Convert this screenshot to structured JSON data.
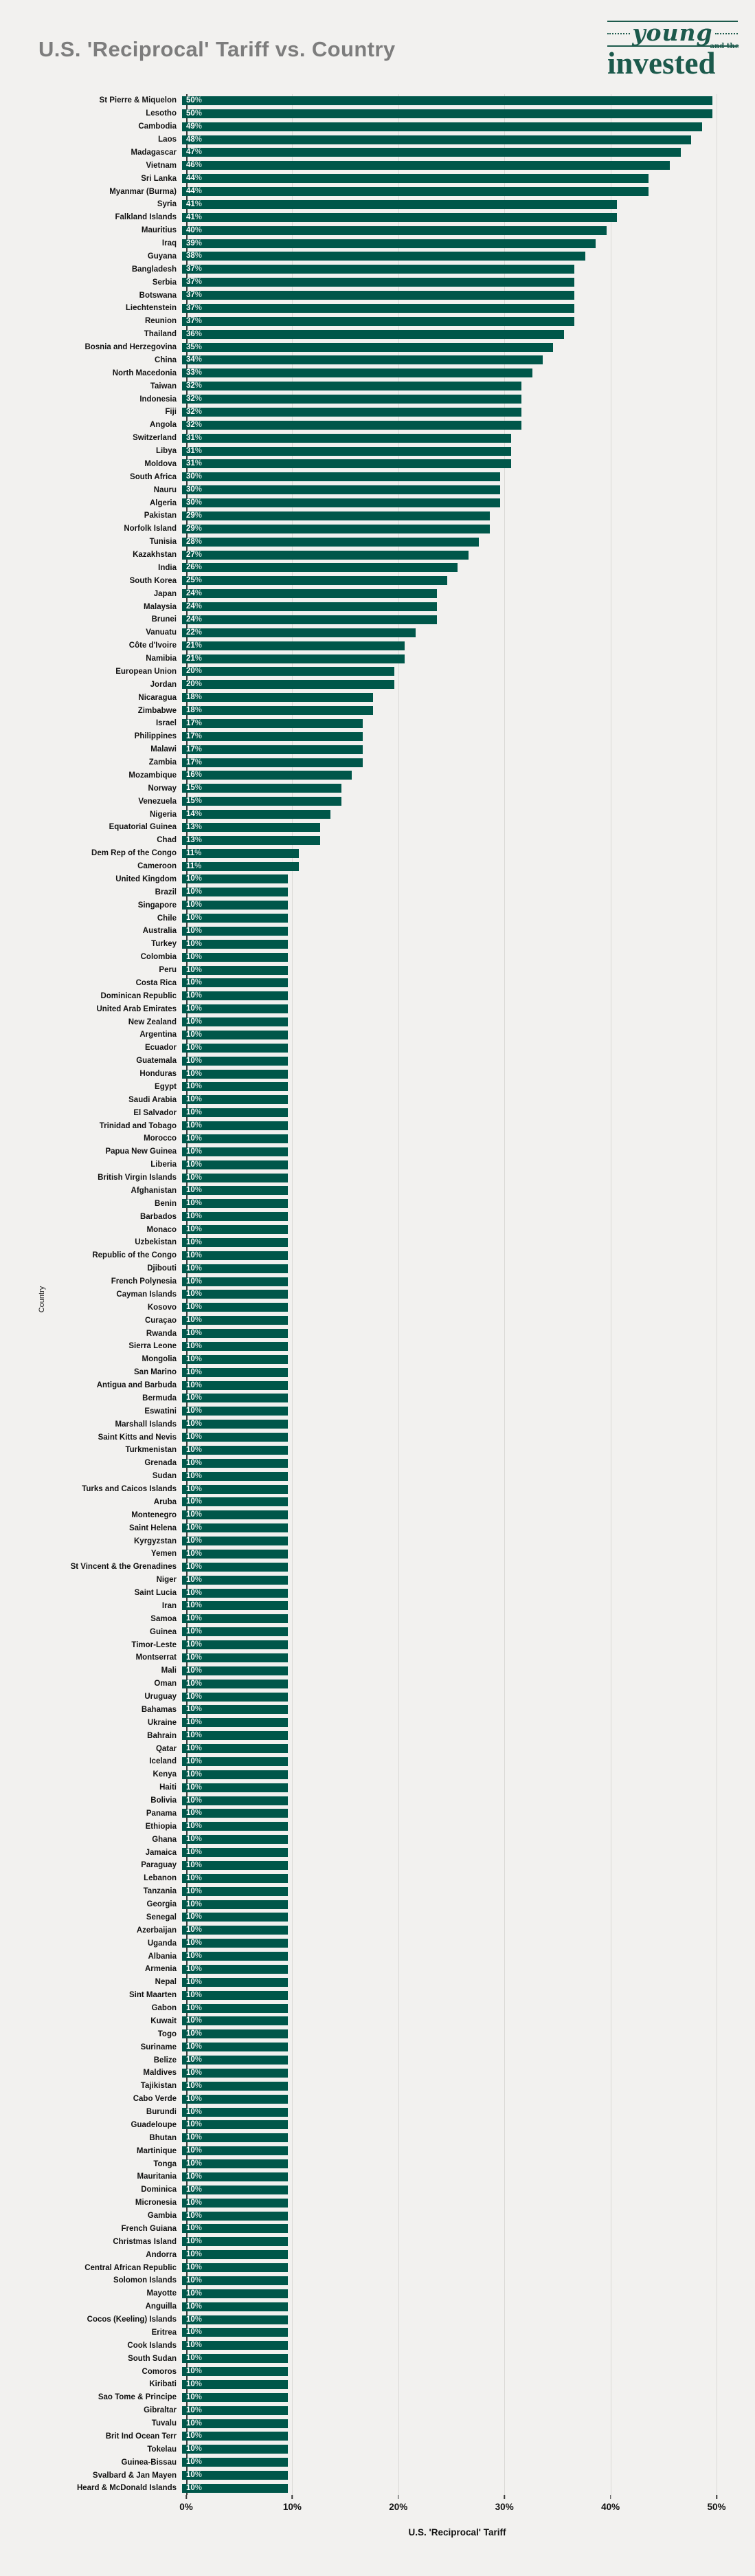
{
  "header": {
    "title": "U.S. 'Reciprocal' Tariff vs. Country"
  },
  "logo": {
    "young": "young",
    "and_the": "and the",
    "invested": "invested",
    "color": "#1c5a4c"
  },
  "axes": {
    "xlabel": "U.S. 'Reciprocal' Tariff",
    "ylabel": "Country"
  },
  "chart_data": {
    "type": "bar",
    "orientation": "horizontal",
    "title": "U.S. 'Reciprocal' Tariff vs. Country",
    "xlabel": "U.S. 'Reciprocal' Tariff",
    "ylabel": "Country",
    "xlim": [
      0,
      51.1
    ],
    "x_ticks": [
      "0%",
      "10%",
      "20%",
      "30%",
      "40%",
      "50%"
    ],
    "x_tick_values": [
      0,
      10,
      20,
      30,
      40,
      50
    ],
    "grid": true,
    "bar_color": "#00574a",
    "background_color": "#f2f1ef",
    "value_label_format": "{value}%",
    "categories": [
      "St Pierre & Miquelon",
      "Lesotho",
      "Cambodia",
      "Laos",
      "Madagascar",
      "Vietnam",
      "Sri Lanka",
      "Myanmar (Burma)",
      "Syria",
      "Falkland Islands",
      "Mauritius",
      "Iraq",
      "Guyana",
      "Bangladesh",
      "Serbia",
      "Botswana",
      "Liechtenstein",
      "Reunion",
      "Thailand",
      "Bosnia and Herzegovina",
      "China",
      "North Macedonia",
      "Taiwan",
      "Indonesia",
      "Fiji",
      "Angola",
      "Switzerland",
      "Libya",
      "Moldova",
      "South Africa",
      "Nauru",
      "Algeria",
      "Pakistan",
      "Norfolk Island",
      "Tunisia",
      "Kazakhstan",
      "India",
      "South Korea",
      "Japan",
      "Malaysia",
      "Brunei",
      "Vanuatu",
      "Côte d'Ivoire",
      "Namibia",
      "European Union",
      "Jordan",
      "Nicaragua",
      "Zimbabwe",
      "Israel",
      "Philippines",
      "Malawi",
      "Zambia",
      "Mozambique",
      "Norway",
      "Venezuela",
      "Nigeria",
      "Equatorial Guinea",
      "Chad",
      "Dem Rep of the Congo",
      "Cameroon",
      "United Kingdom",
      "Brazil",
      "Singapore",
      "Chile",
      "Australia",
      "Turkey",
      "Colombia",
      "Peru",
      "Costa Rica",
      "Dominican Republic",
      "United Arab Emirates",
      "New Zealand",
      "Argentina",
      "Ecuador",
      "Guatemala",
      "Honduras",
      "Egypt",
      "Saudi Arabia",
      "El Salvador",
      "Trinidad and Tobago",
      "Morocco",
      "Papua New Guinea",
      "Liberia",
      "British Virgin Islands",
      "Afghanistan",
      "Benin",
      "Barbados",
      "Monaco",
      "Uzbekistan",
      "Republic of the Congo",
      "Djibouti",
      "French Polynesia",
      "Cayman Islands",
      "Kosovo",
      "Curaçao",
      "Rwanda",
      "Sierra Leone",
      "Mongolia",
      "San Marino",
      "Antigua and Barbuda",
      "Bermuda",
      "Eswatini",
      "Marshall Islands",
      "Saint Kitts and Nevis",
      "Turkmenistan",
      "Grenada",
      "Sudan",
      "Turks and Caicos Islands",
      "Aruba",
      "Montenegro",
      "Saint Helena",
      "Kyrgyzstan",
      "Yemen",
      "St Vincent & the Grenadines",
      "Niger",
      "Saint Lucia",
      "Iran",
      "Samoa",
      "Guinea",
      "Timor-Leste",
      "Montserrat",
      "Mali",
      "Oman",
      "Uruguay",
      "Bahamas",
      "Ukraine",
      "Bahrain",
      "Qatar",
      "Iceland",
      "Kenya",
      "Haiti",
      "Bolivia",
      "Panama",
      "Ethiopia",
      "Ghana",
      "Jamaica",
      "Paraguay",
      "Lebanon",
      "Tanzania",
      "Georgia",
      "Senegal",
      "Azerbaijan",
      "Uganda",
      "Albania",
      "Armenia",
      "Nepal",
      "Sint Maarten",
      "Gabon",
      "Kuwait",
      "Togo",
      "Suriname",
      "Belize",
      "Maldives",
      "Tajikistan",
      "Cabo Verde",
      "Burundi",
      "Guadeloupe",
      "Bhutan",
      "Martinique",
      "Tonga",
      "Mauritania",
      "Dominica",
      "Micronesia",
      "Gambia",
      "French Guiana",
      "Christmas Island",
      "Andorra",
      "Central African Republic",
      "Solomon Islands",
      "Mayotte",
      "Anguilla",
      "Cocos (Keeling) Islands",
      "Eritrea",
      "Cook Islands",
      "South Sudan",
      "Comoros",
      "Kiribati",
      "Sao Tome & Principe",
      "Gibraltar",
      "Tuvalu",
      "Brit Ind Ocean Terr",
      "Tokelau",
      "Guinea-Bissau",
      "Svalbard & Jan Mayen",
      "Heard & McDonald Islands"
    ],
    "values": [
      50,
      50,
      49,
      48,
      47,
      46,
      44,
      44,
      41,
      41,
      40,
      39,
      38,
      37,
      37,
      37,
      37,
      37,
      36,
      35,
      34,
      33,
      32,
      32,
      32,
      32,
      31,
      31,
      31,
      30,
      30,
      30,
      29,
      29,
      28,
      27,
      26,
      25,
      24,
      24,
      24,
      22,
      21,
      21,
      20,
      20,
      18,
      18,
      17,
      17,
      17,
      17,
      16,
      15,
      15,
      14,
      13,
      13,
      11,
      11,
      10,
      10,
      10,
      10,
      10,
      10,
      10,
      10,
      10,
      10,
      10,
      10,
      10,
      10,
      10,
      10,
      10,
      10,
      10,
      10,
      10,
      10,
      10,
      10,
      10,
      10,
      10,
      10,
      10,
      10,
      10,
      10,
      10,
      10,
      10,
      10,
      10,
      10,
      10,
      10,
      10,
      10,
      10,
      10,
      10,
      10,
      10,
      10,
      10,
      10,
      10,
      10,
      10,
      10,
      10,
      10,
      10,
      10,
      10,
      10,
      10,
      10,
      10,
      10,
      10,
      10,
      10,
      10,
      10,
      10,
      10,
      10,
      10,
      10,
      10,
      10,
      10,
      10,
      10,
      10,
      10,
      10,
      10,
      10,
      10,
      10,
      10,
      10,
      10,
      10,
      10,
      10,
      10,
      10,
      10,
      10,
      10,
      10,
      10,
      10,
      10,
      10,
      10,
      10,
      10,
      10,
      10,
      10,
      10,
      10,
      10,
      10,
      10,
      10,
      10,
      10,
      10,
      10,
      10,
      10,
      10,
      10,
      10,
      10,
      10
    ]
  }
}
